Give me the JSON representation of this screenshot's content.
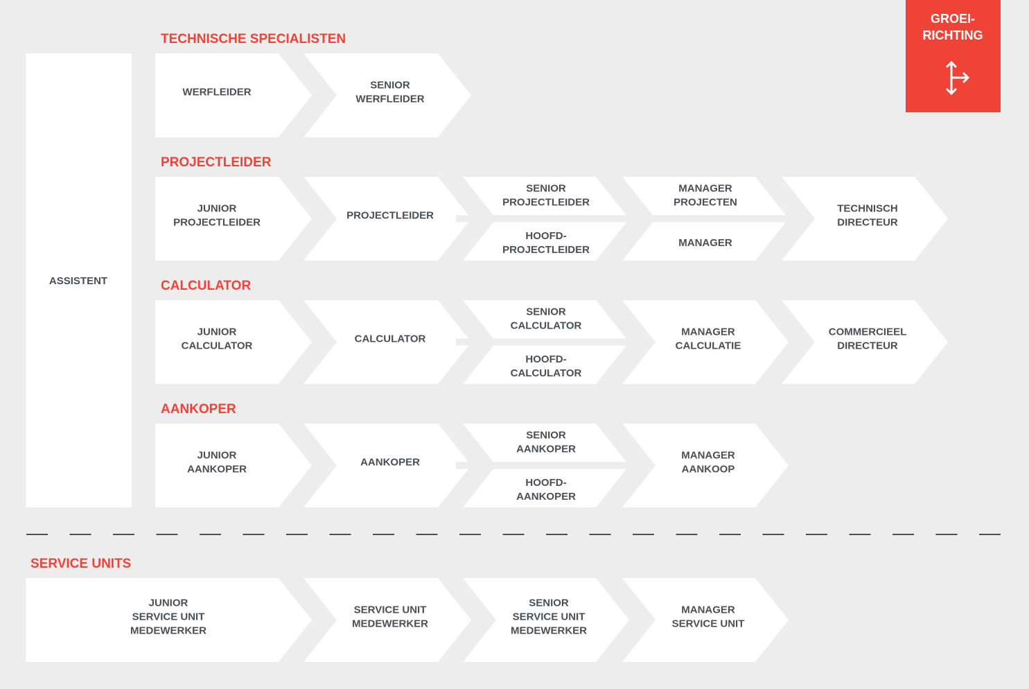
{
  "colors": {
    "background": "#ecedec",
    "accent": "#f04337",
    "box": "#ffffff",
    "text": "#4a4f55"
  },
  "legend": {
    "lines": [
      "GROEI-",
      "RICHTING"
    ],
    "icon": "branch-arrows-icon"
  },
  "assistant": {
    "label": "ASSISTENT"
  },
  "rows": [
    {
      "title": "TECHNISCHE SPECIALISTEN",
      "items": [
        {
          "lines": [
            "WERFLEIDER"
          ]
        },
        {
          "lines": [
            "SENIOR",
            "WERFLEIDER"
          ]
        }
      ]
    },
    {
      "title": "PROJECTLEIDER",
      "items": [
        {
          "lines": [
            "JUNIOR",
            "PROJECTLEIDER"
          ]
        },
        {
          "lines": [
            "PROJECTLEIDER"
          ]
        },
        {
          "split": [
            [
              "SENIOR",
              "PROJECTLEIDER"
            ],
            [
              "HOOFD-",
              "PROJECTLEIDER"
            ]
          ]
        },
        {
          "split": [
            [
              "MANAGER",
              "PROJECTEN"
            ],
            [
              "MANAGER"
            ]
          ]
        },
        {
          "lines": [
            "TECHNISCH",
            "DIRECTEUR"
          ]
        }
      ]
    },
    {
      "title": "CALCULATOR",
      "items": [
        {
          "lines": [
            "JUNIOR",
            "CALCULATOR"
          ]
        },
        {
          "lines": [
            "CALCULATOR"
          ]
        },
        {
          "split": [
            [
              "SENIOR",
              "CALCULATOR"
            ],
            [
              "HOOFD-",
              "CALCULATOR"
            ]
          ]
        },
        {
          "lines": [
            "MANAGER",
            "CALCULATIE"
          ]
        },
        {
          "lines": [
            "COMMERCIEEL",
            "DIRECTEUR"
          ]
        }
      ]
    },
    {
      "title": "AANKOPER",
      "items": [
        {
          "lines": [
            "JUNIOR",
            "AANKOPER"
          ]
        },
        {
          "lines": [
            "AANKOPER"
          ]
        },
        {
          "split": [
            [
              "SENIOR",
              "AANKOPER"
            ],
            [
              "HOOFD-",
              "AANKOPER"
            ]
          ]
        },
        {
          "lines": [
            "MANAGER",
            "AANKOOP"
          ]
        }
      ]
    }
  ],
  "service": {
    "title": "SERVICE UNITS",
    "items": [
      {
        "lines": [
          "JUNIOR",
          "SERVICE UNIT",
          "MEDEWERKER"
        ]
      },
      {
        "lines": [
          "SERVICE UNIT",
          "MEDEWERKER"
        ]
      },
      {
        "lines": [
          "SENIOR",
          "SERVICE UNIT",
          "MEDEWERKER"
        ]
      },
      {
        "lines": [
          "MANAGER",
          "SERVICE UNIT"
        ]
      }
    ]
  }
}
